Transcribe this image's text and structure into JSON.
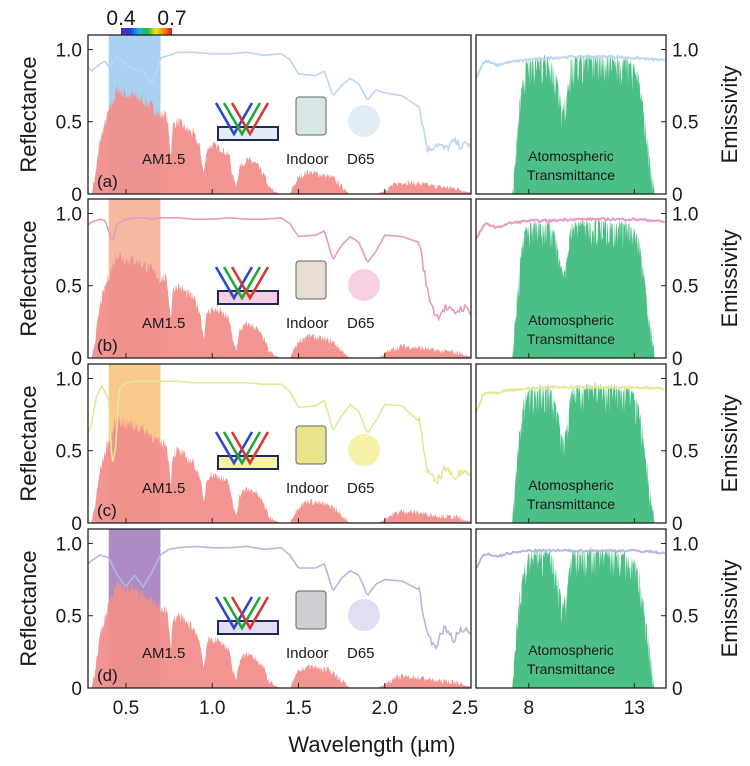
{
  "figure": {
    "xlabel": "Wavelength (µm)",
    "ylabel_left": "Reflectance",
    "ylabel_right": "Emissivity",
    "visible_band_start": "0.4",
    "visible_band_end": "0.7"
  },
  "chart_data": {
    "type": "line",
    "title": "",
    "left_axis": {
      "xlim": [
        0.28,
        2.5
      ],
      "xticks": [
        "0.5",
        "1.0",
        "1.5",
        "2.0",
        "2.5"
      ],
      "xtick_values": [
        0.5,
        1.0,
        1.5,
        2.0,
        2.5
      ],
      "ylim": [
        0,
        1.1
      ],
      "yticks": [
        "0",
        "0.5",
        "1.0"
      ],
      "ytick_values": [
        0,
        0.5,
        1.0
      ]
    },
    "right_axis": {
      "xlim": [
        5.5,
        14.5
      ],
      "xticks": [
        "8",
        "13"
      ],
      "xtick_values": [
        8,
        13
      ],
      "ylim": [
        0,
        1.1
      ],
      "yticks": [
        "0",
        "0.5",
        "1.0"
      ],
      "ytick_values": [
        0,
        0.5,
        1.0
      ]
    },
    "am15_label": "AM1.5",
    "atm_label_line1": "Atomospheric",
    "atm_label_line2": "Transmittance",
    "indoor_label": "Indoor",
    "d65_label": "D65",
    "am15_spectrum": {
      "x": [
        0.3,
        0.32,
        0.35,
        0.4,
        0.43,
        0.45,
        0.47,
        0.5,
        0.55,
        0.6,
        0.65,
        0.7,
        0.72,
        0.74,
        0.76,
        0.77,
        0.8,
        0.85,
        0.89,
        0.93,
        0.95,
        0.97,
        1.0,
        1.05,
        1.1,
        1.12,
        1.14,
        1.16,
        1.2,
        1.25,
        1.3,
        1.33,
        1.4,
        1.45,
        1.5,
        1.55,
        1.6,
        1.7,
        1.75,
        1.8,
        1.9,
        1.95,
        2.0,
        2.05,
        2.1,
        2.2,
        2.3,
        2.4,
        2.5
      ],
      "y": [
        0.0,
        0.1,
        0.35,
        0.55,
        0.63,
        0.7,
        0.68,
        0.66,
        0.65,
        0.62,
        0.58,
        0.52,
        0.54,
        0.5,
        0.25,
        0.45,
        0.48,
        0.43,
        0.4,
        0.3,
        0.12,
        0.3,
        0.32,
        0.3,
        0.25,
        0.1,
        0.05,
        0.18,
        0.22,
        0.2,
        0.12,
        0.03,
        0.0,
        0.0,
        0.1,
        0.14,
        0.13,
        0.1,
        0.04,
        0.0,
        0.0,
        0.0,
        0.02,
        0.05,
        0.07,
        0.06,
        0.04,
        0.03,
        0.01
      ]
    },
    "atmospheric_transmittance": {
      "x": [
        5.5,
        7.2,
        7.5,
        7.8,
        8.0,
        9.0,
        9.3,
        9.6,
        9.8,
        10.0,
        11.0,
        12.0,
        12.8,
        13.2,
        13.6,
        14.0,
        14.5
      ],
      "y": [
        0.0,
        0.0,
        0.6,
        0.9,
        0.95,
        0.97,
        0.85,
        0.6,
        0.7,
        0.95,
        0.98,
        0.97,
        0.95,
        0.85,
        0.45,
        0.0,
        0.0
      ]
    },
    "panels": [
      {
        "label": "(a)",
        "color": "#bcd6ef",
        "band_color": "#a9d2f2",
        "swatch_color": "#e3edf7",
        "indoor_color": "#d9e6e6",
        "reflectance": {
          "x": [
            0.28,
            0.3,
            0.35,
            0.38,
            0.4,
            0.45,
            0.5,
            0.55,
            0.6,
            0.65,
            0.68,
            0.7,
            0.75,
            0.8,
            0.9,
            1.0,
            1.1,
            1.2,
            1.3,
            1.4,
            1.45,
            1.5,
            1.6,
            1.65,
            1.7,
            1.75,
            1.8,
            1.85,
            1.9,
            1.95,
            2.0,
            2.1,
            2.2,
            2.25,
            2.3,
            2.35,
            2.4,
            2.45,
            2.5
          ],
          "y": [
            0.88,
            0.85,
            0.9,
            0.92,
            0.88,
            0.95,
            0.9,
            0.86,
            0.85,
            0.76,
            0.85,
            0.94,
            0.96,
            0.98,
            0.98,
            0.97,
            0.97,
            0.98,
            0.96,
            0.97,
            0.93,
            0.83,
            0.82,
            0.85,
            0.68,
            0.75,
            0.8,
            0.76,
            0.65,
            0.72,
            0.7,
            0.68,
            0.6,
            0.3,
            0.35,
            0.31,
            0.36,
            0.33,
            0.35
          ]
        },
        "emissivity": {
          "x": [
            5.5,
            5.8,
            6.0,
            6.5,
            7.0,
            8.0,
            9.0,
            10.0,
            11.0,
            12.0,
            13.0,
            14.0,
            14.5
          ],
          "y": [
            0.8,
            0.9,
            0.92,
            0.89,
            0.91,
            0.93,
            0.94,
            0.95,
            0.95,
            0.95,
            0.94,
            0.93,
            0.92
          ]
        }
      },
      {
        "label": "(b)",
        "color": "#e89ac0",
        "band_color": "#f6b9a1",
        "swatch_color": "#f6d0e2",
        "indoor_color": "#e9dcd2",
        "reflectance": {
          "x": [
            0.28,
            0.3,
            0.35,
            0.38,
            0.42,
            0.45,
            0.5,
            0.55,
            0.6,
            0.65,
            0.7,
            0.8,
            0.9,
            1.0,
            1.1,
            1.2,
            1.3,
            1.4,
            1.45,
            1.5,
            1.6,
            1.65,
            1.7,
            1.75,
            1.8,
            1.85,
            1.9,
            1.95,
            2.0,
            2.1,
            2.2,
            2.25,
            2.3,
            2.35,
            2.4,
            2.45,
            2.5
          ],
          "y": [
            0.92,
            0.94,
            0.96,
            0.95,
            0.8,
            0.93,
            0.96,
            0.97,
            0.97,
            0.96,
            0.97,
            0.97,
            0.96,
            0.96,
            0.97,
            0.96,
            0.96,
            0.97,
            0.93,
            0.84,
            0.85,
            0.88,
            0.68,
            0.78,
            0.84,
            0.8,
            0.66,
            0.74,
            0.85,
            0.84,
            0.8,
            0.45,
            0.28,
            0.35,
            0.31,
            0.35,
            0.32
          ]
        },
        "emissivity": {
          "x": [
            5.5,
            5.8,
            6.0,
            6.5,
            7.0,
            8.0,
            9.0,
            10.0,
            11.0,
            12.0,
            13.0,
            14.0,
            14.5
          ],
          "y": [
            0.82,
            0.9,
            0.93,
            0.9,
            0.93,
            0.95,
            0.95,
            0.96,
            0.96,
            0.96,
            0.96,
            0.95,
            0.94
          ]
        }
      },
      {
        "label": "(c)",
        "color": "#e6e695",
        "band_color": "#f8c98a",
        "swatch_color": "#f6f2a8",
        "indoor_color": "#e8e48c",
        "reflectance": {
          "x": [
            0.28,
            0.3,
            0.33,
            0.36,
            0.4,
            0.42,
            0.44,
            0.46,
            0.5,
            0.55,
            0.6,
            0.7,
            0.8,
            0.9,
            1.0,
            1.1,
            1.2,
            1.3,
            1.4,
            1.45,
            1.5,
            1.6,
            1.65,
            1.7,
            1.75,
            1.8,
            1.85,
            1.9,
            1.95,
            2.0,
            2.1,
            2.2,
            2.25,
            2.3,
            2.35,
            2.4,
            2.45,
            2.5
          ],
          "y": [
            0.62,
            0.68,
            0.88,
            0.95,
            0.85,
            0.4,
            0.52,
            0.93,
            0.97,
            0.98,
            0.98,
            0.98,
            0.98,
            0.97,
            0.97,
            0.97,
            0.97,
            0.96,
            0.96,
            0.91,
            0.8,
            0.81,
            0.85,
            0.64,
            0.74,
            0.82,
            0.77,
            0.62,
            0.71,
            0.82,
            0.81,
            0.7,
            0.35,
            0.28,
            0.38,
            0.3,
            0.36,
            0.33
          ]
        },
        "emissivity": {
          "x": [
            5.5,
            5.8,
            6.0,
            6.5,
            7.0,
            8.0,
            9.0,
            10.0,
            11.0,
            12.0,
            13.0,
            14.0,
            14.5
          ],
          "y": [
            0.76,
            0.88,
            0.9,
            0.9,
            0.92,
            0.93,
            0.94,
            0.94,
            0.94,
            0.94,
            0.94,
            0.93,
            0.93
          ]
        }
      },
      {
        "label": "(d)",
        "color": "#b5b6e3",
        "band_color": "#ad8cc4",
        "swatch_color": "#e2ddf2",
        "indoor_color": "#cfcfd3",
        "reflectance": {
          "x": [
            0.28,
            0.3,
            0.35,
            0.4,
            0.45,
            0.5,
            0.55,
            0.6,
            0.65,
            0.7,
            0.75,
            0.8,
            0.9,
            1.0,
            1.1,
            1.2,
            1.3,
            1.4,
            1.45,
            1.5,
            1.6,
            1.65,
            1.7,
            1.75,
            1.8,
            1.85,
            1.9,
            1.95,
            2.0,
            2.1,
            2.2,
            2.25,
            2.3,
            2.35,
            2.4,
            2.45,
            2.5
          ],
          "y": [
            0.86,
            0.88,
            0.92,
            0.9,
            0.78,
            0.7,
            0.78,
            0.7,
            0.8,
            0.92,
            0.96,
            0.97,
            0.98,
            0.97,
            0.97,
            0.98,
            0.96,
            0.97,
            0.92,
            0.83,
            0.83,
            0.86,
            0.67,
            0.76,
            0.81,
            0.78,
            0.64,
            0.72,
            0.75,
            0.74,
            0.68,
            0.35,
            0.3,
            0.42,
            0.34,
            0.4,
            0.38
          ]
        },
        "emissivity": {
          "x": [
            5.5,
            5.8,
            6.0,
            6.5,
            7.0,
            8.0,
            9.0,
            10.0,
            11.0,
            12.0,
            13.0,
            14.0,
            14.5
          ],
          "y": [
            0.82,
            0.91,
            0.93,
            0.91,
            0.93,
            0.95,
            0.95,
            0.95,
            0.95,
            0.95,
            0.95,
            0.94,
            0.93
          ]
        }
      }
    ]
  }
}
